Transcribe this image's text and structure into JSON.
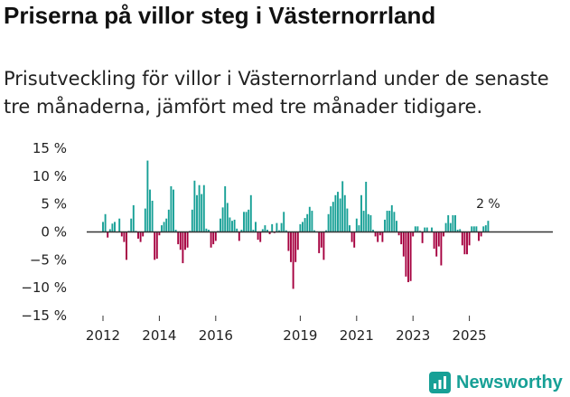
{
  "header": {
    "title": "Priserna på villor steg i Västernorrland",
    "subtitle": "Prisutveckling för villor i Västernorrland under de senaste tre månaderna, jämfört med tre månader tidigare."
  },
  "brand": {
    "name": "Newsworthy",
    "icon": "newsworthy-logo-icon",
    "color": "#17a096"
  },
  "colors": {
    "positive": "#17a096",
    "negative": "#a5003f",
    "zero_line": "#333333"
  },
  "chart_data": {
    "type": "bar",
    "title": "Priserna på villor steg i Västernorrland",
    "subtitle": "Prisutveckling för villor i Västernorrland under de senaste tre månaderna, jämfört med tre månader tidigare.",
    "xlabel": "",
    "ylabel": "",
    "ylim": [
      -15,
      15
    ],
    "y_ticks": [
      15,
      10,
      5,
      0,
      -5,
      -10,
      -15
    ],
    "y_tick_labels": [
      "15 %",
      "10 %",
      "5 %",
      "0 %",
      "−5 %",
      "−10 %",
      "−15 %"
    ],
    "x_ticks": [
      2012,
      2014,
      2016,
      2019,
      2021,
      2023,
      2025
    ],
    "x_tick_labels": [
      "2012",
      "2014",
      "2016",
      "2019",
      "2021",
      "2023",
      "2025"
    ],
    "grid": false,
    "legend": "none",
    "start": {
      "year": 2012,
      "month": 1
    },
    "unit": "%",
    "values": [
      1.8,
      3.2,
      -1,
      0.5,
      1.5,
      1.8,
      0,
      2.4,
      -0.8,
      -1.8,
      -5,
      0.2,
      2.4,
      4.8,
      0.2,
      -1.2,
      -1.8,
      -0.8,
      4.2,
      12.8,
      7.6,
      5.6,
      -5,
      -4.8,
      -0.6,
      1.2,
      1.8,
      2.4,
      4,
      8.2,
      7.6,
      0.4,
      -2.2,
      -3.2,
      -5.6,
      -3.2,
      -2.8,
      0.2,
      4,
      9.2,
      6.6,
      8.4,
      6.8,
      8.4,
      0.6,
      0.4,
      -2.8,
      -2.2,
      -1.6,
      0.2,
      2.4,
      4.4,
      8.2,
      5.2,
      2.6,
      2,
      2.2,
      0.6,
      -1.6,
      0.4,
      3.6,
      3.6,
      4,
      6.6,
      0.4,
      1.8,
      -1.4,
      -1.8,
      0.5,
      1.2,
      0.4,
      -0.4,
      1.4,
      -0.2,
      1.6,
      0.3,
      1.6,
      3.6,
      0.3,
      -3.4,
      -5.4,
      -10.2,
      -5.4,
      -3.2,
      1.4,
      1.8,
      2.5,
      3.2,
      4.5,
      3.8,
      0.3,
      0.1,
      -3.8,
      -2.8,
      -5,
      0.3,
      3.2,
      4.6,
      5.4,
      6.6,
      7.2,
      6,
      9.1,
      6.6,
      4.2,
      1.2,
      -1.8,
      -2.8,
      2.4,
      1.2,
      6.6,
      3.8,
      9,
      3.2,
      3,
      0.4,
      -0.8,
      -1.8,
      -0.6,
      -1.8,
      2.2,
      3.8,
      3.8,
      4.8,
      3.6,
      2,
      -0.6,
      -2.2,
      -4.4,
      -8,
      -9,
      -8.8,
      -0.8,
      1,
      1,
      0.2,
      -2,
      0.8,
      0.8,
      0.1,
      0.8,
      -3,
      -4.4,
      -2.6,
      -6,
      -0.8,
      1.6,
      3,
      1.6,
      3,
      3,
      0.4,
      0.5,
      -2.4,
      -4,
      -4,
      -2.4,
      1,
      1,
      1,
      -1.6,
      -0.8,
      1,
      1.2,
      2
    ]
  },
  "annotation": {
    "text": "2 %"
  }
}
